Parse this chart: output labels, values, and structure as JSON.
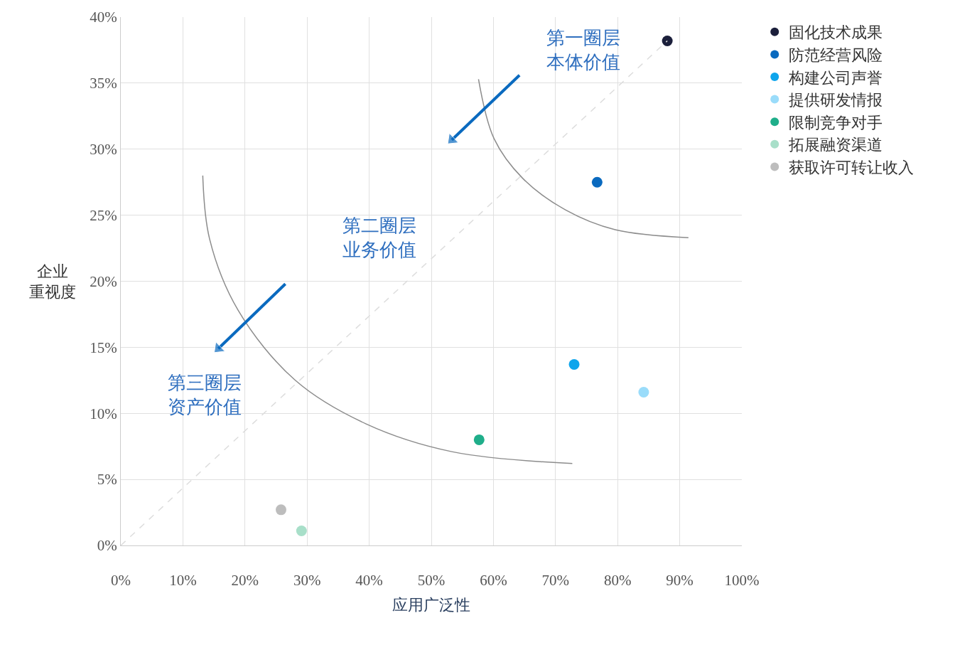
{
  "chart_data": {
    "type": "scatter",
    "xlabel": "应用广泛性",
    "ylabel": "企业重视度",
    "xlim": [
      0,
      100
    ],
    "ylim": [
      0,
      40
    ],
    "xticks": [
      {
        "value": 0,
        "label": "0%"
      },
      {
        "value": 10,
        "label": "10%"
      },
      {
        "value": 20,
        "label": "20%"
      },
      {
        "value": 30,
        "label": "30%"
      },
      {
        "value": 40,
        "label": "40%"
      },
      {
        "value": 50,
        "label": "50%"
      },
      {
        "value": 60,
        "label": "60%"
      },
      {
        "value": 70,
        "label": "70%"
      },
      {
        "value": 80,
        "label": "80%"
      },
      {
        "value": 90,
        "label": "90%"
      },
      {
        "value": 100,
        "label": "100%"
      }
    ],
    "yticks": [
      {
        "value": 0,
        "label": "0%"
      },
      {
        "value": 5,
        "label": "5%"
      },
      {
        "value": 10,
        "label": "10%"
      },
      {
        "value": 15,
        "label": "15%"
      },
      {
        "value": 20,
        "label": "20%"
      },
      {
        "value": 25,
        "label": "25%"
      },
      {
        "value": 30,
        "label": "30%"
      },
      {
        "value": 35,
        "label": "35%"
      },
      {
        "value": 40,
        "label": "40%"
      }
    ],
    "grid": true,
    "legend": "top right",
    "marker": "circle",
    "series": [
      {
        "name": "固化技术成果",
        "color": "#1b1f3b",
        "x": [
          88.0
        ],
        "values": [
          38.2
        ]
      },
      {
        "name": "防范经营风险",
        "color": "#0a6abf",
        "x": [
          76.7
        ],
        "values": [
          27.5
        ]
      },
      {
        "name": "构建公司声誉",
        "color": "#0ea5ec",
        "x": [
          73.0
        ],
        "values": [
          13.7
        ]
      },
      {
        "name": "提供研发情报",
        "color": "#9adcfa",
        "x": [
          84.2
        ],
        "values": [
          11.6
        ]
      },
      {
        "name": "限制竞争对手",
        "color": "#1fae8a",
        "x": [
          57.7
        ],
        "values": [
          8.0
        ]
      },
      {
        "name": "拓展融资渠道",
        "color": "#a8dfc9",
        "x": [
          29.1
        ],
        "values": [
          1.1
        ]
      },
      {
        "name": "获取许可转让收入",
        "color": "#bdbdbd",
        "x": [
          25.8
        ],
        "values": [
          2.7
        ]
      },
      {
        "type": "line",
        "color": "#dddddd",
        "line_style": "dashed",
        "marker": "none",
        "x": [
          0,
          88.0
        ],
        "values": [
          0,
          38.2
        ]
      },
      {
        "type": "line",
        "color": "#8c8c8c",
        "line_style": "solid",
        "marker": "none",
        "x": [
          57.6,
          60.1,
          64.7,
          71.6,
          79.6,
          91.4
        ],
        "values": [
          35.3,
          30.8,
          27.8,
          25.4,
          23.9,
          23.3
        ]
      },
      {
        "type": "line",
        "color": "#8c8c8c",
        "line_style": "solid",
        "marker": "none",
        "x": [
          13.2,
          14.3,
          18.9,
          28.1,
          39.5,
          53.3,
          72.7
        ],
        "values": [
          28.0,
          23.2,
          17.8,
          12.5,
          9.2,
          7.1,
          6.2
        ]
      },
      {
        "type": "line",
        "color": "#0a6abf",
        "line_style": "solid",
        "marker": "triangle",
        "x": [
          64.2,
          53.3
        ],
        "values": [
          35.6,
          30.7
        ]
      },
      {
        "type": "line",
        "color": "#0a6abf",
        "line_style": "solid",
        "marker": "triangle",
        "x": [
          26.5,
          15.7
        ],
        "values": [
          19.8,
          14.9
        ]
      }
    ],
    "annotations": [
      "第一圈层本体价值",
      "第二圈层业务价值",
      "第三圈层资产价值"
    ]
  }
}
